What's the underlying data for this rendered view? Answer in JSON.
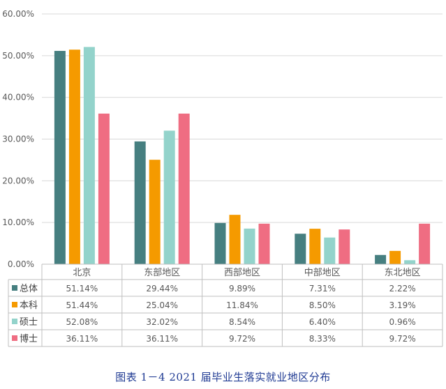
{
  "caption": "图表 1－4 2021 届毕业生落实就业地区分布",
  "chart_data": {
    "type": "bar",
    "categories": [
      "北京",
      "东部地区",
      "西部地区",
      "中部地区",
      "东北地区"
    ],
    "ylim": [
      0,
      60
    ],
    "yticks": [
      "0.00%",
      "10.00%",
      "20.00%",
      "30.00%",
      "40.00%",
      "50.00%",
      "60.00%"
    ],
    "grid": true,
    "legend": "data table, left",
    "series": [
      {
        "name": "总体",
        "color": "#467f80",
        "values": [
          51.14,
          29.44,
          9.89,
          7.31,
          2.22
        ],
        "labels": [
          "51.14%",
          "29.44%",
          "9.89%",
          "7.31%",
          "2.22%"
        ]
      },
      {
        "name": "本科",
        "color": "#f59a00",
        "values": [
          51.44,
          25.04,
          11.84,
          8.5,
          3.19
        ],
        "labels": [
          "51.44%",
          "25.04%",
          "11.84%",
          "8.50%",
          "3.19%"
        ]
      },
      {
        "name": "硕士",
        "color": "#93d3cb",
        "values": [
          52.08,
          32.02,
          8.54,
          6.4,
          0.96
        ],
        "labels": [
          "52.08%",
          "32.02%",
          "8.54%",
          "6.40%",
          "0.96%"
        ]
      },
      {
        "name": "博士",
        "color": "#ef6d82",
        "values": [
          36.11,
          36.11,
          9.72,
          8.33,
          9.72
        ],
        "labels": [
          "36.11%",
          "36.11%",
          "9.72%",
          "8.33%",
          "9.72%"
        ]
      }
    ]
  }
}
